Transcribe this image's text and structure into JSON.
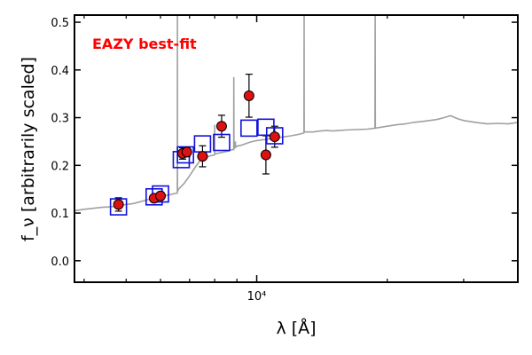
{
  "chart_data": {
    "type": "scatter",
    "annotation": "EAZY best-fit",
    "annotation_color": "#ff0000",
    "xlabel": "λ [Å]",
    "ylabel": "f_ν [arbitrarily scaled]",
    "x_scale": "log",
    "xlim": [
      3800,
      40000
    ],
    "ylim": [
      -0.045,
      0.515
    ],
    "y_ticks": [
      0.0,
      0.1,
      0.2,
      0.3,
      0.4,
      0.5
    ],
    "y_tick_labels": [
      "0.0",
      "0.1",
      "0.2",
      "0.3",
      "0.4",
      "0.5"
    ],
    "x_major_ticks": [
      10000
    ],
    "x_tick_labels": [
      "10⁴"
    ],
    "x_minor_ticks": [
      4000,
      5000,
      6000,
      7000,
      8000,
      9000,
      20000,
      30000,
      40000
    ],
    "grid": false,
    "colors": {
      "sed": "#a0a0a0",
      "observed_fill": "#dd1111",
      "observed_edge": "#000000",
      "model_box": "#1010dd",
      "errorbar": "#000000"
    },
    "series": [
      {
        "kind": "template_spectrum",
        "x": [
          3800,
          4000,
          4200,
          4400,
          4600,
          4800,
          5000,
          5200,
          5400,
          5600,
          5800,
          6000,
          6200,
          6400,
          6560,
          6564,
          6568,
          6600,
          6800,
          7000,
          7200,
          7400,
          7600,
          7800,
          7998,
          8000,
          8002,
          8200,
          8400,
          8600,
          8700,
          8800,
          8850,
          8856,
          8862,
          8880,
          8920,
          8930,
          8940,
          9000,
          9200,
          9400,
          9600,
          9800,
          10000,
          10400,
          10800,
          11200,
          11600,
          12000,
          12500,
          12850,
          12860,
          12870,
          13000,
          13500,
          14000,
          14500,
          15000,
          16000,
          17000,
          18000,
          18740,
          18756,
          18770,
          19000,
          20000,
          21000,
          22000,
          23000,
          24000,
          25000,
          26000,
          27000,
          28000,
          29000,
          30000,
          32000,
          34000,
          36000,
          38000,
          40000
        ],
        "y": [
          0.105,
          0.108,
          0.11,
          0.112,
          0.113,
          0.115,
          0.118,
          0.12,
          0.124,
          0.128,
          0.131,
          0.134,
          0.137,
          0.14,
          0.142,
          0.52,
          0.145,
          0.15,
          0.162,
          0.178,
          0.195,
          0.21,
          0.215,
          0.22,
          0.222,
          0.285,
          0.224,
          0.226,
          0.228,
          0.23,
          0.232,
          0.233,
          0.233,
          0.385,
          0.236,
          0.236,
          0.238,
          0.25,
          0.238,
          0.24,
          0.242,
          0.245,
          0.248,
          0.25,
          0.252,
          0.254,
          0.256,
          0.258,
          0.26,
          0.262,
          0.265,
          0.268,
          0.52,
          0.27,
          0.27,
          0.27,
          0.272,
          0.273,
          0.272,
          0.274,
          0.275,
          0.276,
          0.278,
          0.52,
          0.278,
          0.279,
          0.282,
          0.285,
          0.287,
          0.29,
          0.292,
          0.294,
          0.296,
          0.3,
          0.304,
          0.298,
          0.294,
          0.29,
          0.287,
          0.288,
          0.287,
          0.29
        ]
      },
      {
        "kind": "model_photometry",
        "x": [
          4800,
          5800,
          6000,
          6700,
          6850,
          7500,
          8300,
          9600,
          10500,
          11000
        ],
        "y": [
          0.113,
          0.134,
          0.14,
          0.212,
          0.222,
          0.245,
          0.248,
          0.278,
          0.28,
          0.262
        ]
      },
      {
        "kind": "observed",
        "x": [
          4800,
          5800,
          6000,
          6750,
          6900,
          7500,
          8300,
          9600,
          10500,
          11000
        ],
        "y": [
          0.118,
          0.131,
          0.136,
          0.225,
          0.228,
          0.219,
          0.282,
          0.346,
          0.222,
          0.26
        ],
        "yerr": [
          0.014,
          0.007,
          0.008,
          0.012,
          0.01,
          0.022,
          0.023,
          0.045,
          0.04,
          0.022
        ]
      }
    ]
  }
}
